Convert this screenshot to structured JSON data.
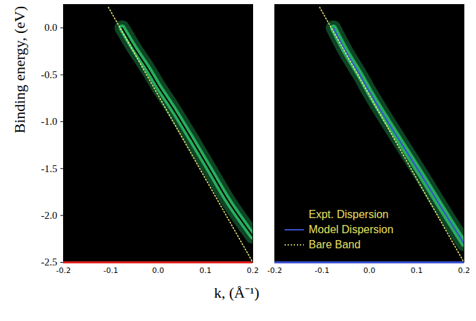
{
  "chart_data": [
    {
      "type": "line",
      "ylabel": "Binding energy, (eV)",
      "xlabel": "k, (Å⁻¹)",
      "xlim": [
        -0.2,
        0.2
      ],
      "ylim": [
        -2.5,
        0.25
      ],
      "xticks": [
        -0.2,
        -0.1,
        {
          "value": 0,
          "label": "0.0"
        },
        0.1,
        0.2
      ],
      "yticks": [
        {
          "value": 0,
          "label": "0.0"
        },
        -0.5,
        {
          "value": -1,
          "label": "-1.0"
        },
        -1.5,
        {
          "value": -2,
          "label": "-2.0"
        },
        -2.5
      ],
      "grid": false,
      "series": [
        {
          "name": "Expt. Dispersion",
          "color": "#000000",
          "line_style": "solid",
          "x": [
            -0.076,
            -0.05,
            -0.02,
            0.0,
            0.03,
            0.07,
            0.11,
            0.15,
            0.2
          ],
          "values": [
            0.0,
            -0.22,
            -0.45,
            -0.62,
            -0.85,
            -1.18,
            -1.52,
            -1.86,
            -2.22
          ]
        },
        {
          "name": "Bare Band",
          "color": "#f0f07a",
          "line_style": "dotted",
          "x": [
            -0.105,
            0.2
          ],
          "values": [
            0.22,
            -2.5
          ]
        }
      ]
    },
    {
      "type": "line",
      "xlim": [
        -0.2,
        0.2
      ],
      "ylim": [
        -2.5,
        0.25
      ],
      "xticks": [
        -0.2,
        -0.1,
        {
          "value": 0,
          "label": "0.0"
        },
        0.1,
        0.2
      ],
      "tick_labels": "x",
      "grid": false,
      "legend": "bottom-left",
      "series": [
        {
          "name": "Model Dispersion",
          "color": "#3a4fd0",
          "line_style": "solid",
          "x": [
            -0.076,
            -0.05,
            -0.02,
            0.0,
            0.03,
            0.07,
            0.11,
            0.15,
            0.2
          ],
          "values": [
            0.0,
            -0.25,
            -0.5,
            -0.68,
            -0.93,
            -1.25,
            -1.57,
            -1.9,
            -2.3
          ]
        },
        {
          "name": "Bare Band",
          "color": "#f0f07a",
          "line_style": "dotted",
          "x": [
            -0.105,
            0.2
          ],
          "values": [
            0.22,
            -2.5
          ]
        }
      ]
    }
  ]
}
